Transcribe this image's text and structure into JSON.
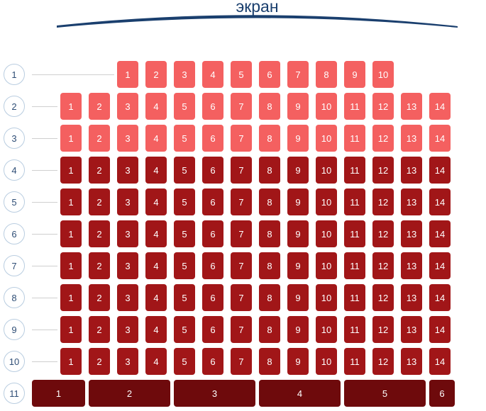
{
  "screen": {
    "label": "экран"
  },
  "colors": {
    "light": "#f46060",
    "dark": "#a11618",
    "sofa": "#6e0a0c",
    "screen_arc": "#1a3f6e",
    "row_circle_border": "#b9cde0"
  },
  "rows": [
    {
      "number": "1",
      "tier": "light",
      "seats": [
        "1",
        "2",
        "3",
        "4",
        "5",
        "6",
        "7",
        "8",
        "9",
        "10"
      ]
    },
    {
      "number": "2",
      "tier": "light",
      "seats": [
        "1",
        "2",
        "3",
        "4",
        "5",
        "6",
        "7",
        "8",
        "9",
        "10",
        "11",
        "12",
        "13",
        "14"
      ]
    },
    {
      "number": "3",
      "tier": "light",
      "seats": [
        "1",
        "2",
        "3",
        "4",
        "5",
        "6",
        "7",
        "8",
        "9",
        "10",
        "11",
        "12",
        "13",
        "14"
      ]
    },
    {
      "number": "4",
      "tier": "dark",
      "seats": [
        "1",
        "2",
        "3",
        "4",
        "5",
        "6",
        "7",
        "8",
        "9",
        "10",
        "11",
        "12",
        "13",
        "14"
      ]
    },
    {
      "number": "5",
      "tier": "dark",
      "seats": [
        "1",
        "2",
        "3",
        "4",
        "5",
        "6",
        "7",
        "8",
        "9",
        "10",
        "11",
        "12",
        "13",
        "14"
      ]
    },
    {
      "number": "6",
      "tier": "dark",
      "seats": [
        "1",
        "2",
        "3",
        "4",
        "5",
        "6",
        "7",
        "8",
        "9",
        "10",
        "11",
        "12",
        "13",
        "14"
      ]
    },
    {
      "number": "7",
      "tier": "dark",
      "seats": [
        "1",
        "2",
        "3",
        "4",
        "5",
        "6",
        "7",
        "8",
        "9",
        "10",
        "11",
        "12",
        "13",
        "14"
      ]
    },
    {
      "number": "8",
      "tier": "dark",
      "seats": [
        "1",
        "2",
        "3",
        "4",
        "5",
        "6",
        "7",
        "8",
        "9",
        "10",
        "11",
        "12",
        "13",
        "14"
      ]
    },
    {
      "number": "9",
      "tier": "dark",
      "seats": [
        "1",
        "2",
        "3",
        "4",
        "5",
        "6",
        "7",
        "8",
        "9",
        "10",
        "11",
        "12",
        "13",
        "14"
      ]
    },
    {
      "number": "10",
      "tier": "dark",
      "seats": [
        "1",
        "2",
        "3",
        "4",
        "5",
        "6",
        "7",
        "8",
        "9",
        "10",
        "11",
        "12",
        "13",
        "14"
      ]
    },
    {
      "number": "11",
      "tier": "sofa",
      "seats": [
        "1",
        "2",
        "3",
        "4",
        "5",
        "6"
      ]
    }
  ]
}
